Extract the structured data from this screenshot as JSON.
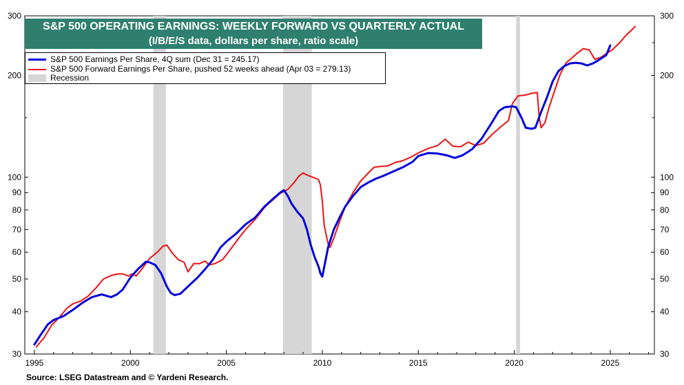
{
  "chart_data": {
    "type": "line",
    "title": "S&P 500 OPERATING EARNINGS: WEEKLY FORWARD VS QUARTERLY ACTUAL",
    "subtitle": "(I/B/E/S data, dollars per share, ratio scale)",
    "source": "Source: LSEG Datastream and © Yardeni Research.",
    "y_scale": "log",
    "ylim": [
      30,
      300
    ],
    "xlim": [
      1994.5,
      2027.3
    ],
    "y_ticks": [
      30,
      40,
      50,
      60,
      70,
      80,
      90,
      100,
      200,
      300
    ],
    "x_ticks": [
      1995,
      2000,
      2005,
      2010,
      2015,
      2020,
      2025
    ],
    "grid": false,
    "legend_placement": "top-left",
    "legend": {
      "actual": "S&P 500 Earnings Per Share, 4Q sum (Dec 31 = 245.17)",
      "forward": "S&P 500 Forward Earnings Per Share, pushed 52 weeks ahead (Apr 03 = 279.13)",
      "recession": "Recession"
    },
    "recessions": [
      [
        2001.2,
        2001.85
      ],
      [
        2007.95,
        2009.45
      ],
      [
        2020.1,
        2020.3
      ]
    ],
    "series": [
      {
        "name": "S&P 500 Earnings Per Share, 4Q sum (Dec 31 = 245.17)",
        "color": "#0000dd",
        "points": [
          [
            1995.0,
            32.0
          ],
          [
            1995.3,
            34.0
          ],
          [
            1995.7,
            36.7
          ],
          [
            1996.0,
            37.8
          ],
          [
            1996.5,
            38.8
          ],
          [
            1997.0,
            40.5
          ],
          [
            1997.5,
            42.5
          ],
          [
            1998.0,
            44.2
          ],
          [
            1998.5,
            45.0
          ],
          [
            1999.0,
            44.2
          ],
          [
            1999.3,
            45.0
          ],
          [
            1999.6,
            46.5
          ],
          [
            2000.0,
            50.5
          ],
          [
            2000.4,
            53.5
          ],
          [
            2000.8,
            56.2
          ],
          [
            2001.0,
            56.0
          ],
          [
            2001.3,
            55.0
          ],
          [
            2001.6,
            52.0
          ],
          [
            2001.9,
            47.5
          ],
          [
            2002.1,
            45.5
          ],
          [
            2002.3,
            44.8
          ],
          [
            2002.6,
            45.2
          ],
          [
            2003.0,
            47.5
          ],
          [
            2003.5,
            50.5
          ],
          [
            2003.9,
            53.5
          ],
          [
            2004.3,
            57.0
          ],
          [
            2004.7,
            62.0
          ],
          [
            2005.0,
            64.5
          ],
          [
            2005.5,
            68.0
          ],
          [
            2006.0,
            72.5
          ],
          [
            2006.5,
            76.0
          ],
          [
            2007.0,
            82.0
          ],
          [
            2007.5,
            87.0
          ],
          [
            2007.8,
            90.0
          ],
          [
            2008.0,
            91.5
          ],
          [
            2008.2,
            88.0
          ],
          [
            2008.4,
            83.5
          ],
          [
            2008.7,
            79.0
          ],
          [
            2009.0,
            75.5
          ],
          [
            2009.2,
            70.0
          ],
          [
            2009.4,
            63.0
          ],
          [
            2009.6,
            58.0
          ],
          [
            2009.8,
            54.5
          ],
          [
            2009.9,
            52.0
          ],
          [
            2010.0,
            50.8
          ],
          [
            2010.3,
            62.0
          ],
          [
            2010.6,
            70.0
          ],
          [
            2010.9,
            76.0
          ],
          [
            2011.2,
            82.0
          ],
          [
            2011.6,
            88.0
          ],
          [
            2012.0,
            93.5
          ],
          [
            2012.4,
            96.5
          ],
          [
            2012.8,
            99.0
          ],
          [
            2013.2,
            101.0
          ],
          [
            2013.7,
            104.0
          ],
          [
            2014.2,
            107.0
          ],
          [
            2014.7,
            111.0
          ],
          [
            2015.0,
            115.5
          ],
          [
            2015.5,
            117.8
          ],
          [
            2016.0,
            117.5
          ],
          [
            2016.5,
            116.0
          ],
          [
            2016.9,
            114.0
          ],
          [
            2017.3,
            116.0
          ],
          [
            2017.8,
            121.0
          ],
          [
            2018.3,
            130.0
          ],
          [
            2018.8,
            144.0
          ],
          [
            2019.2,
            157.0
          ],
          [
            2019.5,
            161.0
          ],
          [
            2019.9,
            162.0
          ],
          [
            2020.1,
            161.0
          ],
          [
            2020.4,
            149.0
          ],
          [
            2020.6,
            140.0
          ],
          [
            2020.9,
            139.0
          ],
          [
            2021.1,
            140.0
          ],
          [
            2021.4,
            156.0
          ],
          [
            2021.7,
            172.0
          ],
          [
            2022.0,
            192.0
          ],
          [
            2022.3,
            206.0
          ],
          [
            2022.6,
            213.0
          ],
          [
            2022.9,
            217.0
          ],
          [
            2023.2,
            218.0
          ],
          [
            2023.5,
            217.0
          ],
          [
            2023.8,
            214.0
          ],
          [
            2024.1,
            217.0
          ],
          [
            2024.4,
            222.0
          ],
          [
            2024.8,
            230.0
          ],
          [
            2025.0,
            245.17
          ]
        ]
      },
      {
        "name": "S&P 500 Forward Earnings Per Share, pushed 52 weeks ahead (Apr 03 = 279.13)",
        "color": "#ee1111",
        "points": [
          [
            1995.1,
            31.5
          ],
          [
            1995.5,
            33.5
          ],
          [
            1995.9,
            36.5
          ],
          [
            1996.3,
            38.5
          ],
          [
            1996.7,
            41.0
          ],
          [
            1997.0,
            42.2
          ],
          [
            1997.4,
            43.0
          ],
          [
            1997.8,
            44.5
          ],
          [
            1998.2,
            47.0
          ],
          [
            1998.6,
            50.0
          ],
          [
            1999.0,
            51.2
          ],
          [
            1999.3,
            51.7
          ],
          [
            1999.6,
            51.8
          ],
          [
            1999.9,
            51.0
          ],
          [
            2000.1,
            51.8
          ],
          [
            2000.3,
            51.0
          ],
          [
            2000.6,
            53.5
          ],
          [
            2001.0,
            57.5
          ],
          [
            2001.4,
            60.0
          ],
          [
            2001.7,
            62.5
          ],
          [
            2001.9,
            63.0
          ],
          [
            2002.2,
            59.5
          ],
          [
            2002.5,
            57.0
          ],
          [
            2002.8,
            56.0
          ],
          [
            2003.0,
            52.5
          ],
          [
            2003.3,
            55.5
          ],
          [
            2003.6,
            55.5
          ],
          [
            2003.9,
            56.5
          ],
          [
            2004.1,
            55.0
          ],
          [
            2004.4,
            55.5
          ],
          [
            2004.8,
            57.0
          ],
          [
            2005.2,
            61.0
          ],
          [
            2005.6,
            65.5
          ],
          [
            2006.0,
            70.0
          ],
          [
            2006.5,
            75.0
          ],
          [
            2007.0,
            81.5
          ],
          [
            2007.4,
            85.5
          ],
          [
            2007.8,
            89.5
          ],
          [
            2008.2,
            92.0
          ],
          [
            2008.5,
            96.0
          ],
          [
            2008.8,
            101.0
          ],
          [
            2009.0,
            103.0
          ],
          [
            2009.2,
            101.5
          ],
          [
            2009.5,
            100.0
          ],
          [
            2009.8,
            98.5
          ],
          [
            2009.9,
            95.0
          ],
          [
            2010.0,
            85.0
          ],
          [
            2010.1,
            72.0
          ],
          [
            2010.3,
            63.5
          ],
          [
            2010.4,
            62.0
          ],
          [
            2010.6,
            66.0
          ],
          [
            2010.9,
            74.0
          ],
          [
            2011.2,
            82.0
          ],
          [
            2011.6,
            90.0
          ],
          [
            2012.0,
            97.5
          ],
          [
            2012.4,
            103.0
          ],
          [
            2012.7,
            107.0
          ],
          [
            2013.0,
            107.5
          ],
          [
            2013.4,
            108.0
          ],
          [
            2013.8,
            110.5
          ],
          [
            2014.2,
            112.0
          ],
          [
            2014.6,
            114.5
          ],
          [
            2015.0,
            118.0
          ],
          [
            2015.5,
            121.5
          ],
          [
            2016.0,
            124.0
          ],
          [
            2016.4,
            129.5
          ],
          [
            2016.8,
            123.5
          ],
          [
            2017.2,
            123.0
          ],
          [
            2017.6,
            127.0
          ],
          [
            2018.0,
            124.0
          ],
          [
            2018.4,
            126.0
          ],
          [
            2018.8,
            133.0
          ],
          [
            2019.3,
            141.0
          ],
          [
            2019.7,
            147.0
          ],
          [
            2019.9,
            165.0
          ],
          [
            2020.2,
            174.0
          ],
          [
            2020.6,
            175.0
          ],
          [
            2020.9,
            177.0
          ],
          [
            2021.2,
            178.0
          ],
          [
            2021.3,
            150.0
          ],
          [
            2021.4,
            140.0
          ],
          [
            2021.6,
            145.0
          ],
          [
            2021.8,
            160.0
          ],
          [
            2022.1,
            180.0
          ],
          [
            2022.4,
            202.0
          ],
          [
            2022.7,
            218.0
          ],
          [
            2023.0,
            225.0
          ],
          [
            2023.3,
            233.0
          ],
          [
            2023.6,
            240.0
          ],
          [
            2023.9,
            238.0
          ],
          [
            2024.2,
            223.0
          ],
          [
            2024.5,
            226.0
          ],
          [
            2024.8,
            232.0
          ],
          [
            2025.1,
            238.0
          ],
          [
            2025.5,
            250.0
          ],
          [
            2025.8,
            262.0
          ],
          [
            2026.1,
            272.0
          ],
          [
            2026.3,
            279.13
          ]
        ]
      }
    ]
  },
  "colors": {
    "title_bg": "#2e7f6e",
    "recession": "#d6d6d6",
    "actual": "#0000dd",
    "forward": "#ee1111"
  }
}
